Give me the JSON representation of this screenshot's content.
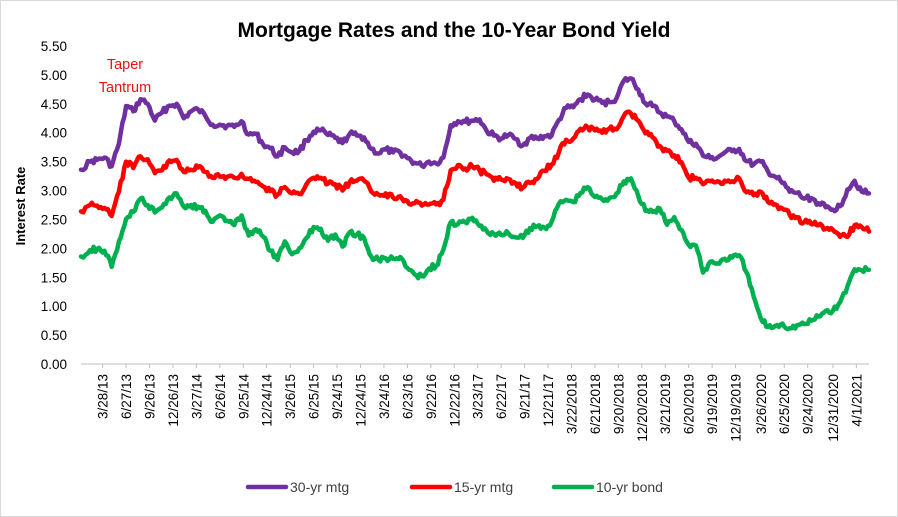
{
  "chart_data": {
    "type": "line",
    "title": "Mortgage Rates and the 10-Year Bond Yield",
    "ylabel": "Interest Rate",
    "xlabel": "",
    "ylim": [
      0,
      5.5
    ],
    "yticks": [
      "0.00",
      "0.50",
      "1.00",
      "1.50",
      "2.00",
      "2.50",
      "3.00",
      "3.50",
      "4.00",
      "4.50",
      "5.00",
      "5.50"
    ],
    "xtick_labels": [
      "3/28/13",
      "6/27/13",
      "9/26/13",
      "12/26/13",
      "3/27/14",
      "6/26/14",
      "9/25/14",
      "12/24/14",
      "3/26/15",
      "6/25/15",
      "9/24/15",
      "12/24/15",
      "3/24/16",
      "6/23/16",
      "9/22/16",
      "12/22/16",
      "3/23/17",
      "6/22/17",
      "9/21/17",
      "12/21/17",
      "3/22/2018",
      "6/21/2018",
      "9/20/2018",
      "12/20/2018",
      "3/21/2019",
      "6/20/2019",
      "9/19/2019",
      "12/19/2019",
      "3/26/2020",
      "6/25/2020",
      "9/24/2020",
      "12/31/2020",
      "4/1/2021"
    ],
    "grid": false,
    "legend_position": "bottom",
    "annotation": {
      "lines": [
        "Taper",
        "Tantrum"
      ],
      "color": "#ee1111"
    },
    "series": [
      {
        "name": "30-yr mtg",
        "color": "#7030a0",
        "x": [
          "1/3/13",
          "2/7/13",
          "3/7/13",
          "4/4/13",
          "5/2/13",
          "5/30/13",
          "6/27/13",
          "7/25/13",
          "8/22/13",
          "9/19/13",
          "10/17/13",
          "11/14/13",
          "12/12/13",
          "1/9/14",
          "2/6/14",
          "3/6/14",
          "4/3/14",
          "5/1/14",
          "5/29/14",
          "6/26/14",
          "7/24/14",
          "8/21/14",
          "9/18/14",
          "10/16/14",
          "11/13/14",
          "12/11/14",
          "1/8/15",
          "2/5/15",
          "3/5/15",
          "4/2/15",
          "4/30/15",
          "5/28/15",
          "6/25/15",
          "7/23/15",
          "8/20/15",
          "9/17/15",
          "10/15/15",
          "11/12/15",
          "12/10/15",
          "1/7/16",
          "2/4/16",
          "3/3/16",
          "3/31/16",
          "4/28/16",
          "5/26/16",
          "6/23/16",
          "7/21/16",
          "8/18/16",
          "9/15/16",
          "10/13/16",
          "11/10/16",
          "12/8/16",
          "1/5/17",
          "2/2/17",
          "3/2/17",
          "3/30/17",
          "4/27/17",
          "5/25/17",
          "6/22/17",
          "7/20/17",
          "8/17/17",
          "9/14/17",
          "10/12/17",
          "11/9/17",
          "12/7/17",
          "1/4/18",
          "2/1/18",
          "3/1/18",
          "3/29/18",
          "4/26/18",
          "5/24/18",
          "6/21/18",
          "7/19/18",
          "8/16/18",
          "9/13/18",
          "10/11/18",
          "11/8/18",
          "12/6/18",
          "1/3/19",
          "1/31/19",
          "2/28/19",
          "3/28/19",
          "4/25/19",
          "5/23/19",
          "6/20/19",
          "7/18/19",
          "8/15/19",
          "9/12/19",
          "10/10/19",
          "11/7/19",
          "12/5/19",
          "1/2/20",
          "1/30/20",
          "2/27/20",
          "3/26/20",
          "4/23/20",
          "5/21/20",
          "6/18/20",
          "7/16/20",
          "8/13/20",
          "9/10/20",
          "10/8/20",
          "11/5/20",
          "12/3/20",
          "12/31/20",
          "1/28/21",
          "2/25/21",
          "3/25/21",
          "4/22/21",
          "5/20/21"
        ],
        "values": [
          3.36,
          3.5,
          3.53,
          3.57,
          3.42,
          3.81,
          4.46,
          4.37,
          4.58,
          4.5,
          4.21,
          4.35,
          4.47,
          4.5,
          4.25,
          4.37,
          4.4,
          4.29,
          4.14,
          4.14,
          4.12,
          4.1,
          4.2,
          3.97,
          3.98,
          3.8,
          3.73,
          3.59,
          3.75,
          3.66,
          3.68,
          3.87,
          4.02,
          4.04,
          3.96,
          3.91,
          3.82,
          3.98,
          3.95,
          3.92,
          3.72,
          3.64,
          3.71,
          3.66,
          3.66,
          3.56,
          3.48,
          3.43,
          3.5,
          3.47,
          3.57,
          4.13,
          4.2,
          4.19,
          4.21,
          4.23,
          4.03,
          3.95,
          3.9,
          3.96,
          3.89,
          3.78,
          3.91,
          3.9,
          3.94,
          3.95,
          4.22,
          4.43,
          4.44,
          4.58,
          4.66,
          4.57,
          4.52,
          4.53,
          4.6,
          4.9,
          4.94,
          4.75,
          4.51,
          4.46,
          4.35,
          4.28,
          4.2,
          4.06,
          3.84,
          3.81,
          3.6,
          3.56,
          3.57,
          3.66,
          3.68,
          3.72,
          3.51,
          3.45,
          3.5,
          3.33,
          3.24,
          3.13,
          2.98,
          2.96,
          2.86,
          2.87,
          2.78,
          2.71,
          2.67,
          2.73,
          3.02,
          3.17,
          2.98,
          2.95
        ]
      },
      {
        "name": "15-yr mtg",
        "color": "#ff0000",
        "x": [
          "1/3/13",
          "2/7/13",
          "3/7/13",
          "4/4/13",
          "5/2/13",
          "5/30/13",
          "6/27/13",
          "7/25/13",
          "8/22/13",
          "9/19/13",
          "10/17/13",
          "11/14/13",
          "12/12/13",
          "1/9/14",
          "2/6/14",
          "3/6/14",
          "4/3/14",
          "5/1/14",
          "5/29/14",
          "6/26/14",
          "7/24/14",
          "8/21/14",
          "9/18/14",
          "10/16/14",
          "11/13/14",
          "12/11/14",
          "1/8/15",
          "2/5/15",
          "3/5/15",
          "4/2/15",
          "4/30/15",
          "5/28/15",
          "6/25/15",
          "7/23/15",
          "8/20/15",
          "9/17/15",
          "10/15/15",
          "11/12/15",
          "12/10/15",
          "1/7/16",
          "2/4/16",
          "3/3/16",
          "3/31/16",
          "4/28/16",
          "5/26/16",
          "6/23/16",
          "7/21/16",
          "8/18/16",
          "9/15/16",
          "10/13/16",
          "11/10/16",
          "12/8/16",
          "1/5/17",
          "2/2/17",
          "3/2/17",
          "3/30/17",
          "4/27/17",
          "5/25/17",
          "6/22/17",
          "7/20/17",
          "8/17/17",
          "9/14/17",
          "10/12/17",
          "11/9/17",
          "12/7/17",
          "1/4/18",
          "2/1/18",
          "3/1/18",
          "3/29/18",
          "4/26/18",
          "5/24/18",
          "6/21/18",
          "7/19/18",
          "8/16/18",
          "9/13/18",
          "10/11/18",
          "11/8/18",
          "12/6/18",
          "1/3/19",
          "1/31/19",
          "2/28/19",
          "3/28/19",
          "4/25/19",
          "5/23/19",
          "6/20/19",
          "7/18/19",
          "8/15/19",
          "9/12/19",
          "10/10/19",
          "11/7/19",
          "12/5/19",
          "1/2/20",
          "1/30/20",
          "2/27/20",
          "3/26/20",
          "4/23/20",
          "5/21/20",
          "6/18/20",
          "7/16/20",
          "8/13/20",
          "9/10/20",
          "10/8/20",
          "11/5/20",
          "12/3/20",
          "12/31/20",
          "1/28/21",
          "2/25/21",
          "3/25/21",
          "4/22/21",
          "5/20/21"
        ],
        "values": [
          2.64,
          2.75,
          2.74,
          2.7,
          2.56,
          2.98,
          3.5,
          3.39,
          3.59,
          3.54,
          3.3,
          3.35,
          3.52,
          3.53,
          3.32,
          3.36,
          3.4,
          3.32,
          3.22,
          3.24,
          3.24,
          3.22,
          3.29,
          3.2,
          3.15,
          3.07,
          2.99,
          2.93,
          3.06,
          2.95,
          2.94,
          3.11,
          3.22,
          3.22,
          3.12,
          3.11,
          3.0,
          3.15,
          3.17,
          3.17,
          2.98,
          2.93,
          2.95,
          2.88,
          2.9,
          2.82,
          2.78,
          2.74,
          2.76,
          2.76,
          2.84,
          3.35,
          3.44,
          3.38,
          3.42,
          3.35,
          3.28,
          3.17,
          3.19,
          3.2,
          3.13,
          3.05,
          3.13,
          3.2,
          3.34,
          3.45,
          3.66,
          3.88,
          3.9,
          4.07,
          4.09,
          4.04,
          4.0,
          4.07,
          4.06,
          4.29,
          4.33,
          4.21,
          3.99,
          3.92,
          3.77,
          3.69,
          3.61,
          3.49,
          3.22,
          3.22,
          3.11,
          3.16,
          3.16,
          3.17,
          3.16,
          3.21,
          2.97,
          2.92,
          2.98,
          2.8,
          2.76,
          2.69,
          2.58,
          2.54,
          2.45,
          2.42,
          2.4,
          2.34,
          2.32,
          2.2,
          2.2,
          2.4,
          2.37,
          2.29
        ]
      },
      {
        "name": "10-yr bond",
        "color": "#00b050",
        "x": [
          "1/3/13",
          "2/7/13",
          "3/7/13",
          "4/4/13",
          "5/2/13",
          "5/30/13",
          "6/27/13",
          "7/25/13",
          "8/22/13",
          "9/19/13",
          "10/17/13",
          "11/14/13",
          "12/12/13",
          "1/9/14",
          "2/6/14",
          "3/6/14",
          "4/3/14",
          "5/1/14",
          "5/29/14",
          "6/26/14",
          "7/24/14",
          "8/21/14",
          "9/18/14",
          "10/16/14",
          "11/13/14",
          "12/11/14",
          "1/8/15",
          "2/5/15",
          "3/5/15",
          "4/2/15",
          "4/30/15",
          "5/28/15",
          "6/25/15",
          "7/23/15",
          "8/20/15",
          "9/17/15",
          "10/15/15",
          "11/12/15",
          "12/10/15",
          "1/7/16",
          "2/4/16",
          "3/3/16",
          "3/31/16",
          "4/28/16",
          "5/26/16",
          "6/23/16",
          "7/21/16",
          "8/18/16",
          "9/15/16",
          "10/13/16",
          "11/10/16",
          "12/8/16",
          "1/5/17",
          "2/2/17",
          "3/2/17",
          "3/30/17",
          "4/27/17",
          "5/25/17",
          "6/22/17",
          "7/20/17",
          "8/17/17",
          "9/14/17",
          "10/12/17",
          "11/9/17",
          "12/7/17",
          "1/4/18",
          "2/1/18",
          "3/1/18",
          "3/29/18",
          "4/26/18",
          "5/24/18",
          "6/21/18",
          "7/19/18",
          "8/16/18",
          "9/13/18",
          "10/11/18",
          "11/8/18",
          "12/6/18",
          "1/3/19",
          "1/31/19",
          "2/28/19",
          "3/28/19",
          "4/25/19",
          "5/23/19",
          "6/20/19",
          "7/18/19",
          "8/15/19",
          "9/12/19",
          "10/10/19",
          "11/7/19",
          "12/5/19",
          "1/2/20",
          "1/30/20",
          "2/27/20",
          "3/26/20",
          "4/23/20",
          "5/21/20",
          "6/18/20",
          "7/16/20",
          "8/13/20",
          "9/10/20",
          "10/8/20",
          "11/5/20",
          "12/3/20",
          "12/31/20",
          "1/28/21",
          "2/25/21",
          "3/25/21",
          "4/22/21",
          "5/20/21"
        ],
        "values": [
          1.86,
          1.97,
          1.99,
          1.96,
          1.68,
          2.12,
          2.51,
          2.63,
          2.86,
          2.75,
          2.62,
          2.71,
          2.88,
          2.95,
          2.72,
          2.75,
          2.72,
          2.65,
          2.46,
          2.57,
          2.48,
          2.4,
          2.57,
          2.22,
          2.33,
          2.2,
          1.96,
          1.8,
          2.12,
          1.9,
          2.0,
          2.18,
          2.37,
          2.34,
          2.13,
          2.24,
          2.03,
          2.28,
          2.24,
          2.18,
          1.86,
          1.8,
          1.83,
          1.82,
          1.85,
          1.66,
          1.55,
          1.52,
          1.65,
          1.7,
          1.98,
          2.45,
          2.42,
          2.45,
          2.53,
          2.39,
          2.3,
          2.25,
          2.23,
          2.26,
          2.19,
          2.18,
          2.35,
          2.38,
          2.36,
          2.46,
          2.77,
          2.84,
          2.8,
          2.96,
          3.06,
          2.89,
          2.85,
          2.87,
          2.95,
          3.16,
          3.21,
          2.91,
          2.65,
          2.63,
          2.69,
          2.41,
          2.54,
          2.32,
          2.06,
          2.05,
          1.58,
          1.77,
          1.74,
          1.82,
          1.84,
          1.88,
          1.59,
          1.17,
          0.79,
          0.64,
          0.66,
          0.7,
          0.62,
          0.67,
          0.69,
          0.75,
          0.82,
          0.92,
          0.92,
          1.07,
          1.34,
          1.64,
          1.62,
          1.63
        ]
      }
    ]
  }
}
